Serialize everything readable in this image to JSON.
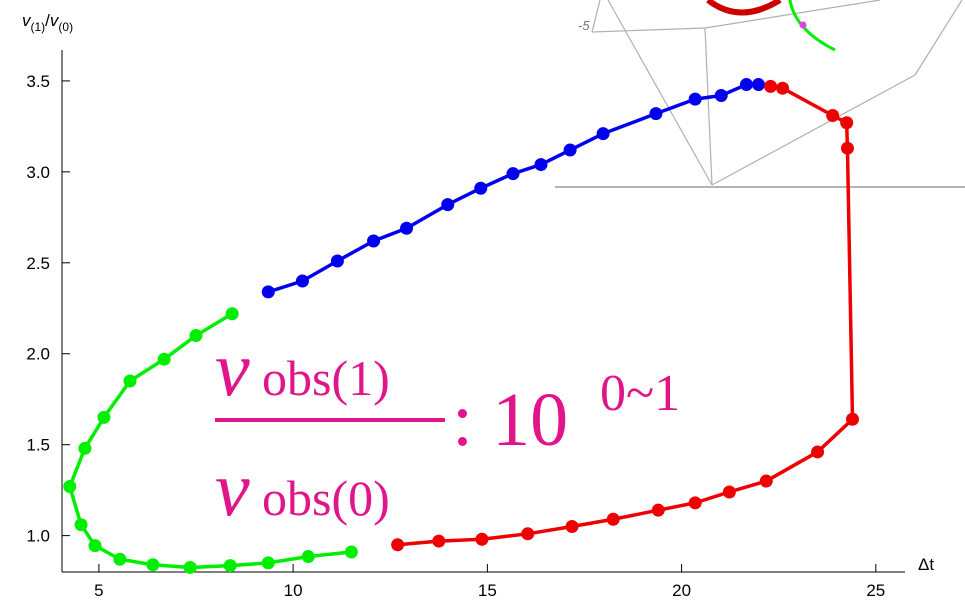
{
  "chart_data": {
    "type": "line",
    "ylabel_parts": [
      "v",
      "(1)",
      "/",
      "v",
      "(0)"
    ],
    "xlabel": "Δt",
    "xlim": [
      4.05,
      25.7
    ],
    "ylim": [
      0.8,
      3.67
    ],
    "xticks": [
      5,
      10,
      15,
      20,
      25
    ],
    "yticks": [
      {
        "value": 1.0,
        "label": "1.0"
      },
      1.5,
      {
        "value": 2.0,
        "label": "2.0"
      },
      2.5,
      {
        "value": 3.0,
        "label": "3.0"
      },
      3.5
    ],
    "series": [
      {
        "color": "#00ee00",
        "x": [
          11.5,
          10.39,
          9.36,
          8.38,
          7.35,
          6.39,
          5.54,
          4.9,
          4.54,
          4.25,
          4.64,
          5.13,
          5.8,
          6.68,
          7.5,
          8.43
        ],
        "values": [
          0.91,
          0.885,
          0.85,
          0.835,
          0.825,
          0.84,
          0.87,
          0.945,
          1.06,
          1.27,
          1.48,
          1.65,
          1.85,
          1.97,
          2.1,
          2.22
        ]
      },
      {
        "color": "#0000ee",
        "x": [
          9.36,
          10.24,
          11.14,
          12.07,
          12.92,
          13.98,
          14.83,
          15.66,
          16.38,
          17.13,
          17.98,
          19.34,
          20.35,
          21.02,
          21.67,
          21.98
        ],
        "values": [
          2.34,
          2.4,
          2.51,
          2.62,
          2.69,
          2.82,
          2.91,
          2.99,
          3.04,
          3.12,
          3.21,
          3.32,
          3.4,
          3.42,
          3.48,
          3.48
        ]
      },
      {
        "color": "#ee0000",
        "x": [
          22.29,
          22.6,
          23.89,
          24.25,
          24.27,
          24.4,
          23.5,
          22.18,
          21.23,
          20.35,
          19.4,
          18.24,
          17.18,
          16.04,
          14.86,
          13.75,
          12.69
        ],
        "values": [
          3.47,
          3.46,
          3.31,
          3.27,
          3.13,
          1.64,
          1.46,
          1.3,
          1.24,
          1.18,
          1.14,
          1.09,
          1.05,
          1.01,
          0.98,
          0.97,
          0.95
        ]
      }
    ],
    "inset_label": "-5",
    "annotation": {
      "numerator": [
        "ν",
        "obs(1)"
      ],
      "denominator": [
        "ν",
        "obs(0)"
      ],
      "suffix": ": 10",
      "exponent": "0~1",
      "color": "#e0158a"
    }
  }
}
